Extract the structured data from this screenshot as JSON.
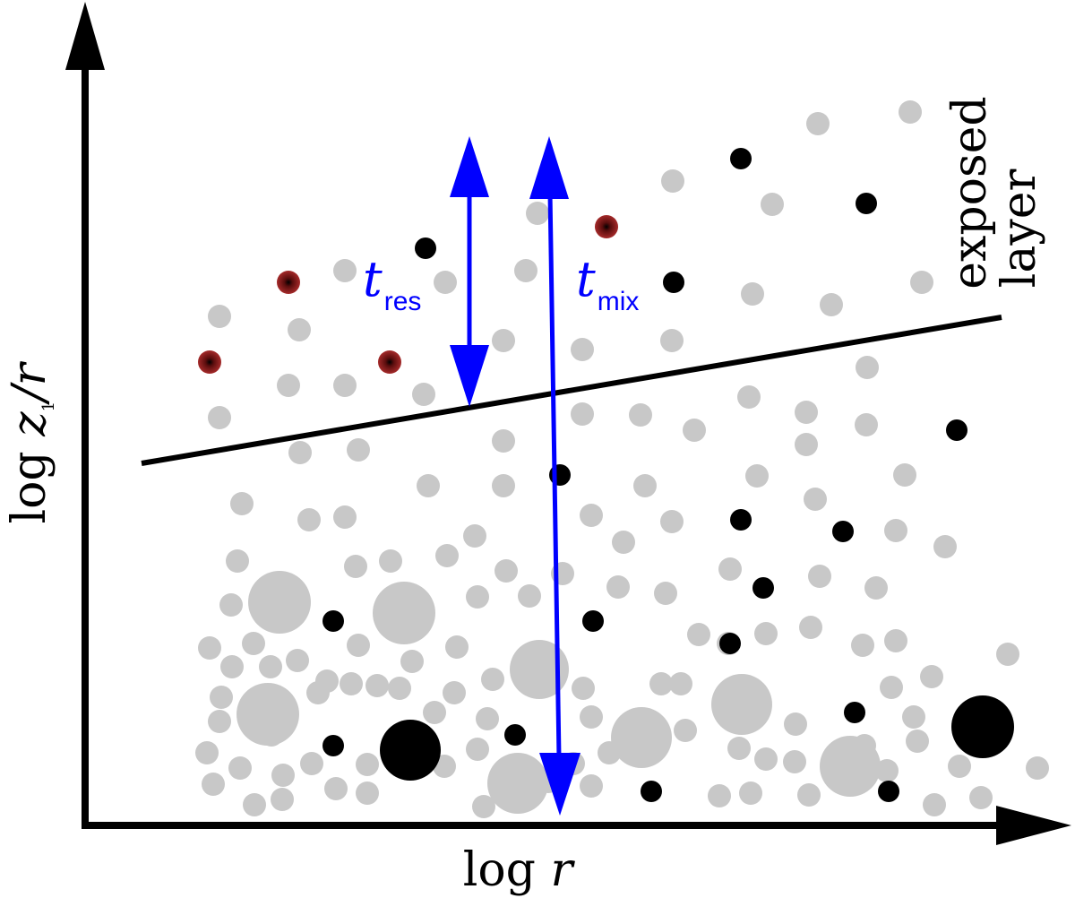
{
  "axes": {
    "x_label": {
      "prefix": "log ",
      "var": "r"
    },
    "y_label": {
      "prefix": "log ",
      "var": "z",
      "subscript": "1",
      "suffix": "/r"
    }
  },
  "annotations": {
    "t_res": {
      "var": "t",
      "subscript": "res"
    },
    "t_mix": {
      "var": "t",
      "subscript": "mix"
    },
    "region_label": {
      "line1": "exposed",
      "line2": "layer"
    }
  },
  "colors": {
    "axis": "#000000",
    "arrows": "#0000ff",
    "small_particle": "#c8c8c8",
    "dark_particle": "#000000",
    "red_particle": "#8b1a1a"
  }
}
